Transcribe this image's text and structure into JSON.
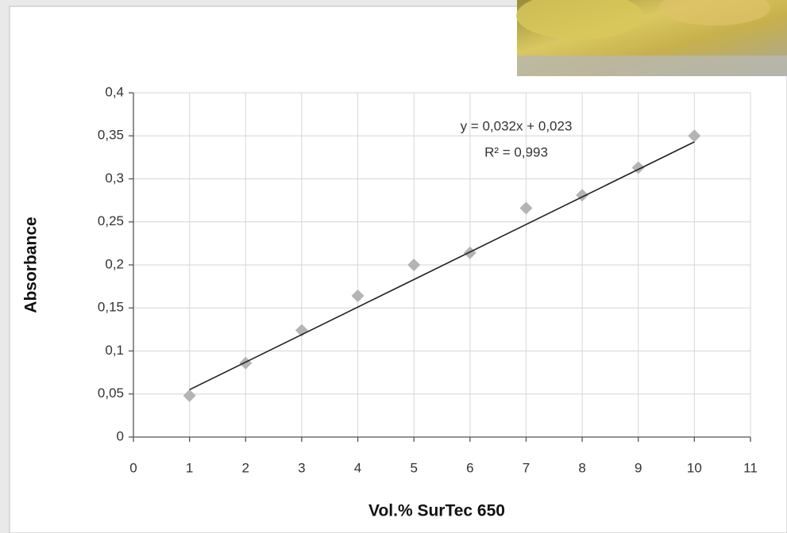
{
  "chart_data": {
    "type": "scatter",
    "x_label": "Vol.% SurTec 650",
    "y_label": "Absorbance",
    "x": [
      1,
      2,
      3,
      4,
      5,
      6,
      7,
      8,
      9,
      10
    ],
    "series": [
      {
        "color": "#b4b4b4",
        "values": [
          0.048,
          0.086,
          0.124,
          0.164,
          0.2,
          0.214,
          0.266,
          0.281,
          0.313,
          0.35
        ]
      }
    ],
    "trendline": {
      "color": "#222222",
      "slope": 0.032,
      "intercept": 0.023,
      "equation": "y = 0,032x + 0,023",
      "r_squared": "R² = 0,993"
    },
    "xlim": [
      0,
      11
    ],
    "xticks": [
      0,
      1,
      2,
      3,
      4,
      5,
      6,
      7,
      8,
      9,
      10,
      11
    ],
    "ylim": [
      0,
      0.4
    ],
    "yticks": [
      0,
      {
        "value": 0.05,
        "label": "0,05"
      },
      {
        "value": 0.1,
        "label": "0,1"
      },
      {
        "value": 0.15,
        "label": "0,15"
      },
      {
        "value": 0.2,
        "label": "0,2"
      },
      {
        "value": 0.25,
        "label": "0,25"
      },
      {
        "value": 0.3,
        "label": "0,3"
      },
      {
        "value": 0.35,
        "label": "0,35"
      },
      {
        "value": 0.4,
        "label": "0,4"
      }
    ],
    "grid": true
  }
}
